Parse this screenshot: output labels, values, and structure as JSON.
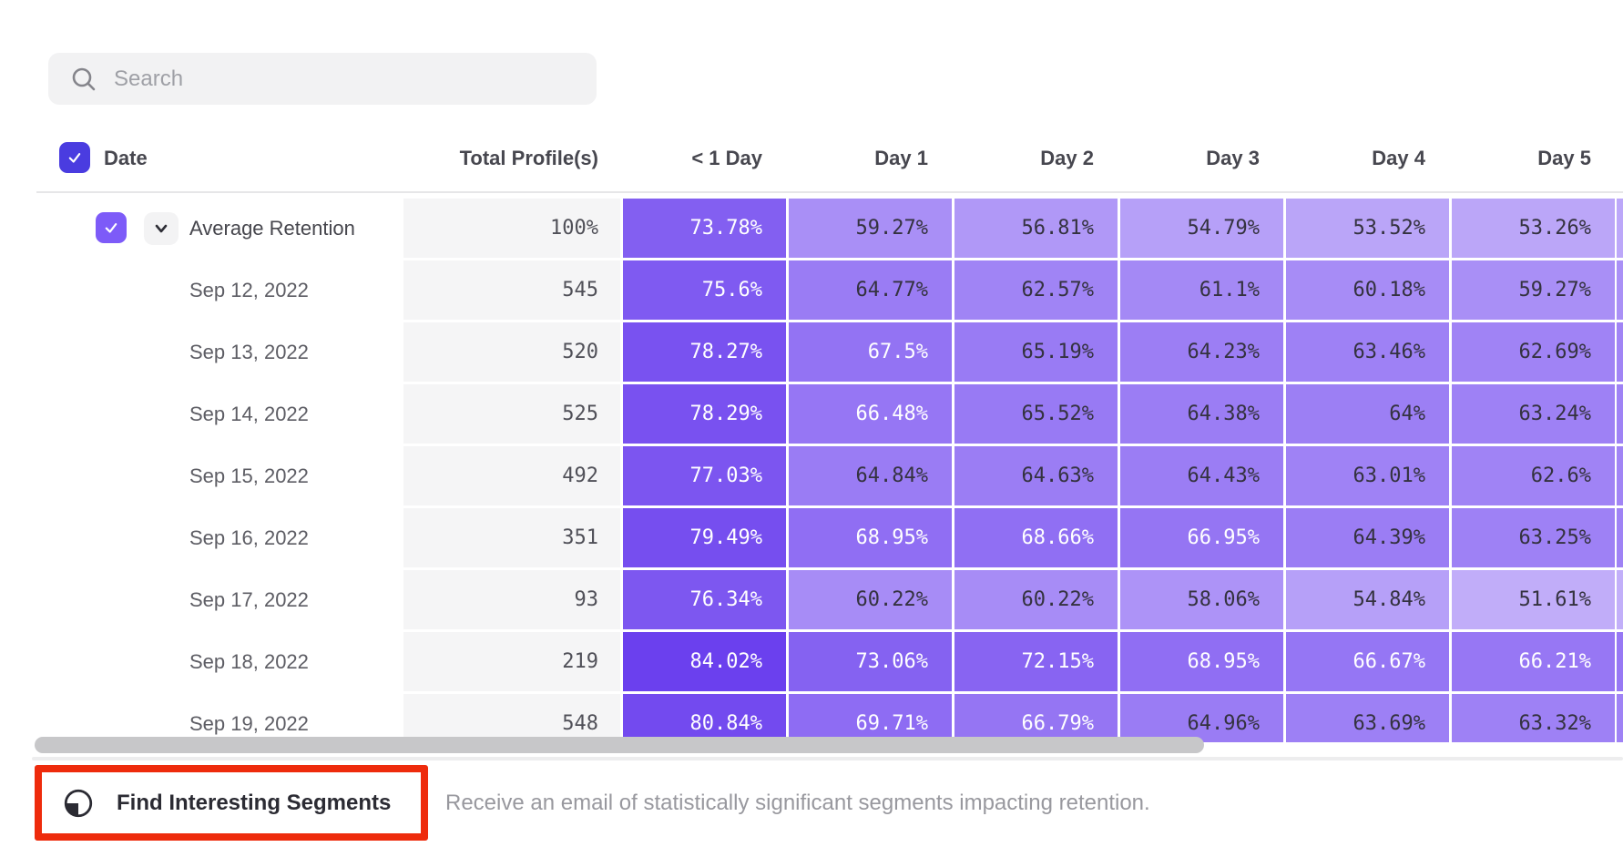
{
  "search": {
    "placeholder": "Search"
  },
  "table": {
    "date_header": "Date",
    "total_header": "Total Profile(s)",
    "day_columns": [
      "< 1 Day",
      "Day 1",
      "Day 2",
      "Day 3",
      "Day 4",
      "Day 5"
    ],
    "rows": [
      {
        "label": "Average Retention",
        "average": true,
        "total": "100%",
        "values": [
          73.78,
          59.27,
          56.81,
          54.79,
          53.52,
          53.26
        ],
        "display": [
          "73.78%",
          "59.27%",
          "56.81%",
          "54.79%",
          "53.52%",
          "53.26%"
        ]
      },
      {
        "label": "Sep 12, 2022",
        "average": false,
        "total": "545",
        "values": [
          75.6,
          64.77,
          62.57,
          61.1,
          60.18,
          59.27
        ],
        "display": [
          "75.6%",
          "64.77%",
          "62.57%",
          "61.1%",
          "60.18%",
          "59.27%"
        ]
      },
      {
        "label": "Sep 13, 2022",
        "average": false,
        "total": "520",
        "values": [
          78.27,
          67.5,
          65.19,
          64.23,
          63.46,
          62.69
        ],
        "display": [
          "78.27%",
          "67.5%",
          "65.19%",
          "64.23%",
          "63.46%",
          "62.69%"
        ]
      },
      {
        "label": "Sep 14, 2022",
        "average": false,
        "total": "525",
        "values": [
          78.29,
          66.48,
          65.52,
          64.38,
          64,
          63.24
        ],
        "display": [
          "78.29%",
          "66.48%",
          "65.52%",
          "64.38%",
          "64%",
          "63.24%"
        ]
      },
      {
        "label": "Sep 15, 2022",
        "average": false,
        "total": "492",
        "values": [
          77.03,
          64.84,
          64.63,
          64.43,
          63.01,
          62.6
        ],
        "display": [
          "77.03%",
          "64.84%",
          "64.63%",
          "64.43%",
          "63.01%",
          "62.6%"
        ]
      },
      {
        "label": "Sep 16, 2022",
        "average": false,
        "total": "351",
        "values": [
          79.49,
          68.95,
          68.66,
          66.95,
          64.39,
          63.25
        ],
        "display": [
          "79.49%",
          "68.95%",
          "68.66%",
          "66.95%",
          "64.39%",
          "63.25%"
        ]
      },
      {
        "label": "Sep 17, 2022",
        "average": false,
        "total": "93",
        "values": [
          76.34,
          60.22,
          60.22,
          58.06,
          54.84,
          51.61
        ],
        "display": [
          "76.34%",
          "60.22%",
          "60.22%",
          "58.06%",
          "54.84%",
          "51.61%"
        ]
      },
      {
        "label": "Sep 18, 2022",
        "average": false,
        "total": "219",
        "values": [
          84.02,
          73.06,
          72.15,
          68.95,
          66.67,
          66.21
        ],
        "display": [
          "84.02%",
          "73.06%",
          "72.15%",
          "68.95%",
          "66.67%",
          "66.21%"
        ]
      },
      {
        "label": "Sep 19, 2022",
        "average": false,
        "total": "548",
        "values": [
          80.84,
          69.71,
          66.79,
          64.96,
          63.69,
          63.32
        ],
        "display": [
          "80.84%",
          "69.71%",
          "66.79%",
          "64.96%",
          "63.69%",
          "63.32%"
        ]
      }
    ]
  },
  "heatmap": {
    "light_color": "#c8b6fa",
    "dark_color": "#6a3fee",
    "min_value": 50,
    "max_value": 84.5,
    "white_text_threshold": 66,
    "dark_text_color": "#34323f",
    "white_text_color": "#ffffff"
  },
  "colors": {
    "header_checkbox": "#4a3ce0",
    "row_checkbox": "#7d5bf8",
    "annotation_red": "#ee2b0c"
  },
  "footer": {
    "button_label": "Find Interesting Segments",
    "description": "Receive an email of statistically significant segments impacting retention."
  }
}
